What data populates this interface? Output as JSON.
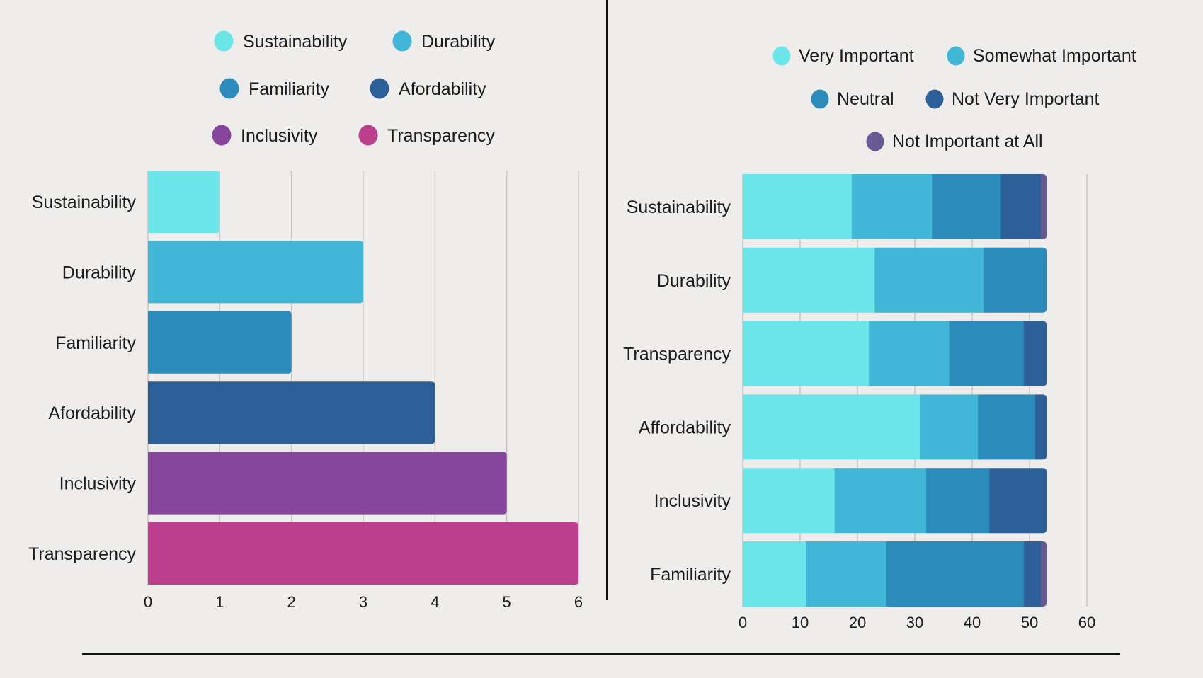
{
  "chart_data": [
    {
      "type": "bar",
      "orientation": "horizontal",
      "title": "",
      "xlabel": "",
      "ylabel": "",
      "categories": [
        "Sustainability",
        "Durability",
        "Familiarity",
        "Afordability",
        "Inclusivity",
        "Transparency"
      ],
      "values": [
        1,
        3,
        2,
        4,
        5,
        6
      ],
      "colors": [
        "#6be5e8",
        "#41b6d6",
        "#2b8bba",
        "#2d5f98",
        "#86469c",
        "#bc3f8d"
      ],
      "xlim": [
        0,
        6
      ],
      "xticks": [
        "0",
        "1",
        "2",
        "3",
        "4",
        "5",
        "6"
      ],
      "grid": true,
      "legend": {
        "placement": "top",
        "entries": [
          "Sustainability",
          "Durability",
          "Familiarity",
          "Afordability",
          "Inclusivity",
          "Transparency"
        ]
      }
    },
    {
      "type": "bar",
      "orientation": "horizontal",
      "stacked": true,
      "title": "",
      "xlabel": "",
      "ylabel": "",
      "categories": [
        "Sustainability",
        "Durability",
        "Transparency",
        "Affordability",
        "Inclusivity",
        "Familiarity"
      ],
      "series": [
        {
          "name": "Very Important",
          "color": "#6be5e8",
          "values": [
            19,
            23,
            22,
            31,
            16,
            11
          ]
        },
        {
          "name": "Somewhat Important",
          "color": "#41b6d6",
          "values": [
            14,
            19,
            14,
            10,
            16,
            14
          ]
        },
        {
          "name": "Neutral",
          "color": "#2b8bba",
          "values": [
            12,
            11,
            13,
            10,
            11,
            24
          ]
        },
        {
          "name": "Not Very Important",
          "color": "#2d5f98",
          "values": [
            7,
            0,
            4,
            2,
            10,
            3
          ]
        },
        {
          "name": "Not Important at All",
          "color": "#655a93",
          "values": [
            1,
            0,
            0,
            0,
            0,
            1
          ]
        }
      ],
      "xlim": [
        0,
        60
      ],
      "xticks": [
        "0",
        "10",
        "20",
        "30",
        "40",
        "50",
        "60"
      ],
      "grid": true,
      "legend": {
        "placement": "top",
        "entries": [
          "Very Important",
          "Somewhat Important",
          "Neutral",
          "Not Very Important",
          "Not Important at All"
        ]
      }
    }
  ]
}
